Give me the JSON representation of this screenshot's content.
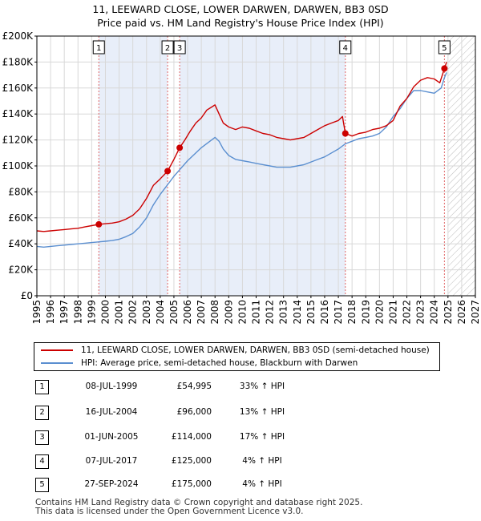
{
  "title_line1": "11, LEEWARD CLOSE, LOWER DARWEN, DARWEN, BB3 0SD",
  "title_line2": "Price paid vs. HM Land Registry's House Price Index (HPI)",
  "colors": {
    "property": "#cc0000",
    "hpi": "#5b8fd0",
    "shade": "#e8eef9",
    "marker_line": "#e06666"
  },
  "chart_data": {
    "type": "line",
    "xlabel": "",
    "ylabel": "",
    "xlim": [
      1995,
      2027
    ],
    "ylim": [
      0,
      200000
    ],
    "y_ticks": [
      0,
      20000,
      40000,
      60000,
      80000,
      100000,
      120000,
      140000,
      160000,
      180000,
      200000
    ],
    "y_tick_labels": [
      "£0",
      "£20K",
      "£40K",
      "£60K",
      "£80K",
      "£100K",
      "£120K",
      "£140K",
      "£160K",
      "£180K",
      "£200K"
    ],
    "x_ticks": [
      1995,
      1996,
      1997,
      1998,
      1999,
      2000,
      2001,
      2002,
      2003,
      2004,
      2005,
      2006,
      2007,
      2008,
      2009,
      2010,
      2011,
      2012,
      2013,
      2014,
      2015,
      2016,
      2017,
      2018,
      2019,
      2020,
      2021,
      2022,
      2023,
      2024,
      2025,
      2026,
      2027
    ],
    "x_tick_labels": [
      "1995",
      "1996",
      "1997",
      "1998",
      "1999",
      "2000",
      "2001",
      "2002",
      "2003",
      "2004",
      "2005",
      "2006",
      "2007",
      "2008",
      "2009",
      "2010",
      "2011",
      "2012",
      "2013",
      "2014",
      "2015",
      "2016",
      "2017",
      "2018",
      "2019",
      "2020",
      "2021",
      "2022",
      "2023",
      "2024",
      "2025",
      "2026",
      "2027"
    ],
    "shaded_ranges": [
      [
        1999.52,
        2004.54
      ],
      [
        2005.42,
        2017.51
      ]
    ],
    "hatched_range": [
      2025.0,
      2027
    ],
    "series": [
      {
        "name": "11, LEEWARD CLOSE, LOWER DARWEN, DARWEN, BB3 0SD (semi-detached house)",
        "x": [
          1995.0,
          1995.5,
          1996.0,
          1996.5,
          1997.0,
          1997.5,
          1998.0,
          1998.5,
          1999.0,
          1999.52,
          2000.0,
          2000.5,
          2001.0,
          2001.5,
          2002.0,
          2002.5,
          2003.0,
          2003.5,
          2004.0,
          2004.54,
          2005.0,
          2005.42,
          2005.8,
          2006.2,
          2006.6,
          2007.0,
          2007.4,
          2007.7,
          2008.0,
          2008.3,
          2008.6,
          2009.0,
          2009.5,
          2010.0,
          2010.5,
          2011.0,
          2011.5,
          2012.0,
          2012.5,
          2013.0,
          2013.5,
          2014.0,
          2014.5,
          2015.0,
          2015.5,
          2016.0,
          2016.5,
          2017.0,
          2017.3,
          2017.51,
          2018.0,
          2018.5,
          2019.0,
          2019.5,
          2020.0,
          2020.5,
          2021.0,
          2021.5,
          2022.0,
          2022.5,
          2023.0,
          2023.5,
          2024.0,
          2024.4,
          2024.74,
          2024.9
        ],
        "values": [
          50000,
          49500,
          50000,
          50500,
          51000,
          51500,
          52000,
          53000,
          54000,
          54995,
          55500,
          56000,
          57000,
          59000,
          62000,
          67000,
          75000,
          85000,
          90000,
          96000,
          105000,
          114000,
          120000,
          127000,
          133000,
          137000,
          143000,
          145000,
          147000,
          140000,
          133000,
          130000,
          128000,
          130000,
          129000,
          127000,
          125000,
          124000,
          122000,
          121000,
          120000,
          121000,
          122000,
          125000,
          128000,
          131000,
          133000,
          135000,
          138000,
          125000,
          123000,
          125000,
          126000,
          128000,
          129000,
          131000,
          135000,
          146000,
          152000,
          161000,
          166000,
          168000,
          167000,
          164000,
          175000,
          180000
        ]
      },
      {
        "name": "HPI: Average price, semi-detached house, Blackburn with Darwen",
        "x": [
          1995.0,
          1995.5,
          1996.0,
          1996.5,
          1997.0,
          1997.5,
          1998.0,
          1998.5,
          1999.0,
          1999.5,
          2000.0,
          2000.5,
          2001.0,
          2001.5,
          2002.0,
          2002.5,
          2003.0,
          2003.5,
          2004.0,
          2004.5,
          2005.0,
          2005.5,
          2006.0,
          2006.5,
          2007.0,
          2007.5,
          2008.0,
          2008.3,
          2008.6,
          2009.0,
          2009.5,
          2010.0,
          2010.5,
          2011.0,
          2011.5,
          2012.0,
          2012.5,
          2013.0,
          2013.5,
          2014.0,
          2014.5,
          2015.0,
          2015.5,
          2016.0,
          2016.5,
          2017.0,
          2017.5,
          2018.0,
          2018.5,
          2019.0,
          2019.5,
          2020.0,
          2020.5,
          2021.0,
          2021.5,
          2022.0,
          2022.5,
          2023.0,
          2023.5,
          2024.0,
          2024.5,
          2024.74,
          2024.9
        ],
        "values": [
          38000,
          37500,
          38000,
          38500,
          39000,
          39500,
          40000,
          40500,
          41000,
          41500,
          42000,
          42500,
          43500,
          45500,
          48000,
          53000,
          60000,
          70000,
          78000,
          85000,
          92000,
          98000,
          104000,
          109000,
          114000,
          118000,
          122000,
          119000,
          113000,
          108000,
          105000,
          104000,
          103000,
          102000,
          101000,
          100000,
          99000,
          99000,
          99000,
          100000,
          101000,
          103000,
          105000,
          107000,
          110000,
          113000,
          117000,
          119000,
          121000,
          122000,
          123000,
          125000,
          130000,
          138000,
          144000,
          152000,
          158000,
          158000,
          157000,
          156000,
          160000,
          168000,
          172000
        ]
      }
    ],
    "transactions": [
      {
        "label": "1",
        "x": 1999.52,
        "value": 54995
      },
      {
        "label": "2",
        "x": 2004.54,
        "value": 96000
      },
      {
        "label": "3",
        "x": 2005.42,
        "value": 114000
      },
      {
        "label": "4",
        "x": 2017.51,
        "value": 125000
      },
      {
        "label": "5",
        "x": 2024.74,
        "value": 175000
      }
    ]
  },
  "legend": {
    "property_label": "11, LEEWARD CLOSE, LOWER DARWEN, DARWEN, BB3 0SD (semi-detached house)",
    "hpi_label": "HPI: Average price, semi-detached house, Blackburn with Darwen"
  },
  "table": [
    {
      "num": "1",
      "date": "08-JUL-1999",
      "price": "£54,995",
      "hpi": "33% ↑ HPI"
    },
    {
      "num": "2",
      "date": "16-JUL-2004",
      "price": "£96,000",
      "hpi": "13% ↑ HPI"
    },
    {
      "num": "3",
      "date": "01-JUN-2005",
      "price": "£114,000",
      "hpi": "17% ↑ HPI"
    },
    {
      "num": "4",
      "date": "07-JUL-2017",
      "price": "£125,000",
      "hpi": "4% ↑ HPI"
    },
    {
      "num": "5",
      "date": "27-SEP-2024",
      "price": "£175,000",
      "hpi": "4% ↑ HPI"
    }
  ],
  "footer_line1": "Contains HM Land Registry data © Crown copyright and database right 2025.",
  "footer_line2": "This data is licensed under the Open Government Licence v3.0."
}
